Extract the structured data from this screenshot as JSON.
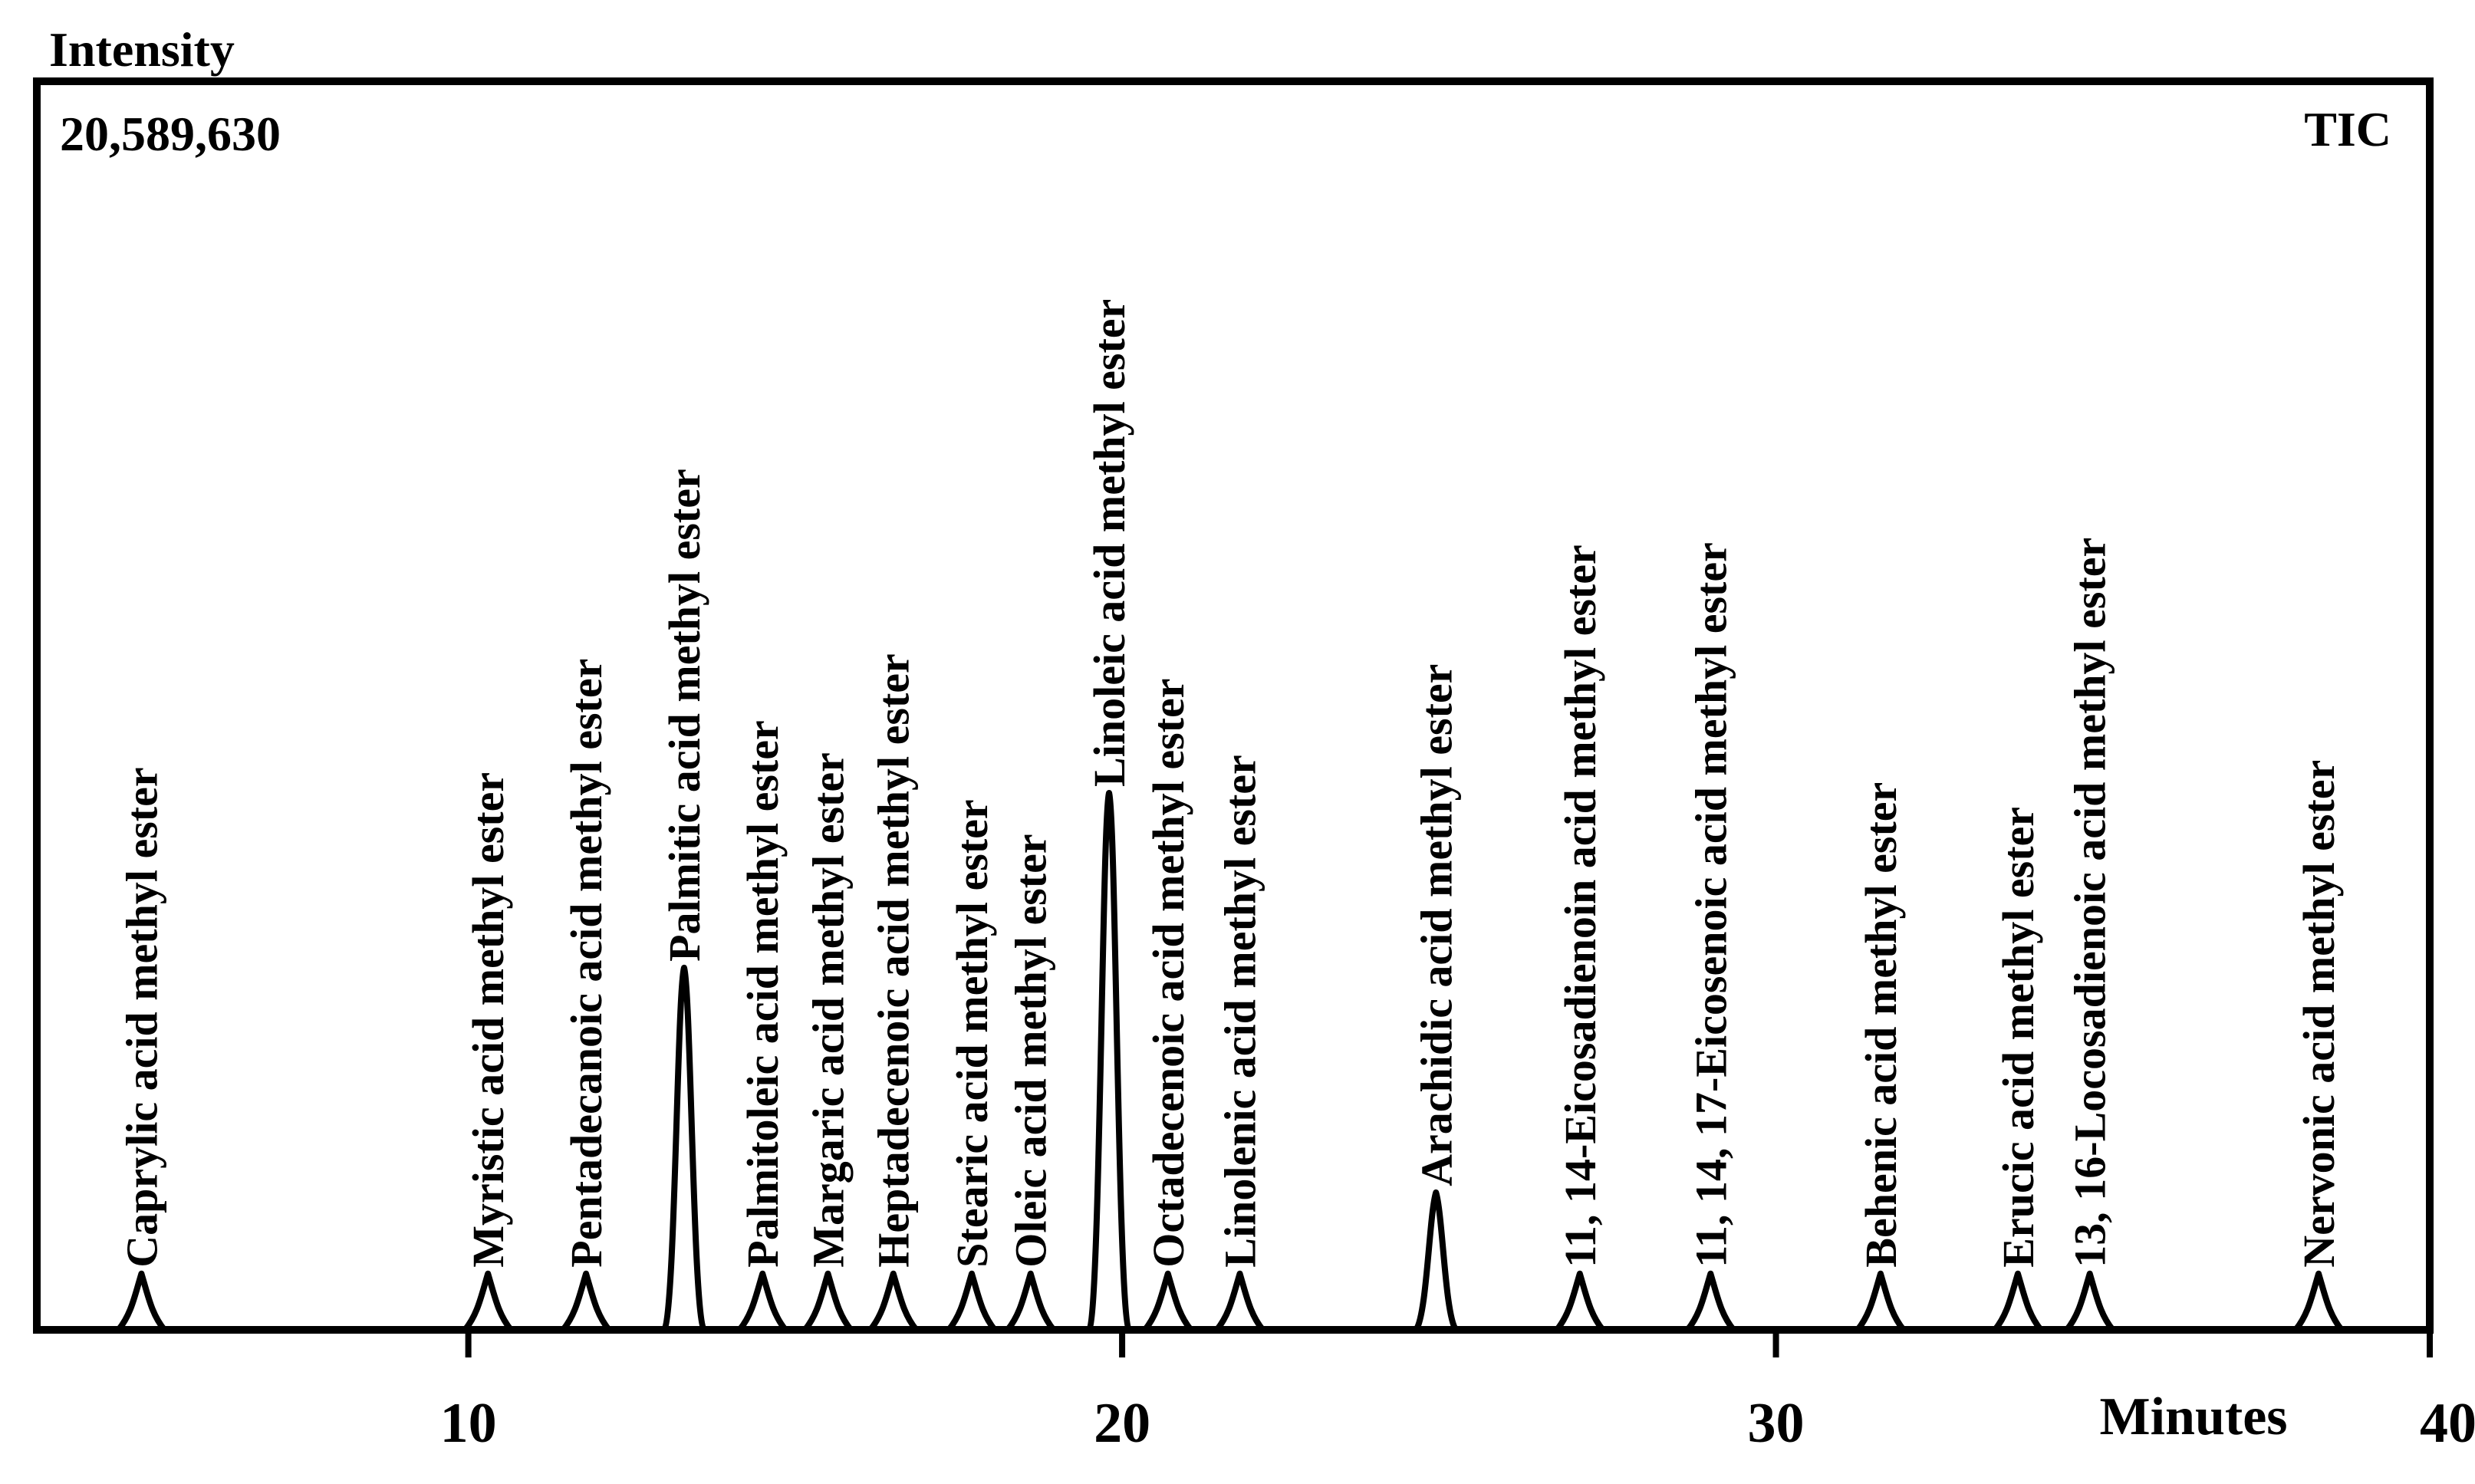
{
  "chart_data": {
    "type": "line",
    "title": "",
    "ylabel": "Intensity",
    "xlabel": "Minutes",
    "y_max_label": "20,589,630",
    "trace_label": "TIC",
    "xlim": [
      3.4,
      40
    ],
    "ylim": [
      0,
      100
    ],
    "grid": false,
    "legend": "none",
    "x_ticks": [
      {
        "value": 10,
        "label": "10"
      },
      {
        "value": 20,
        "label": "20"
      },
      {
        "value": 30,
        "label": "30"
      },
      {
        "value": 40,
        "label": "40"
      }
    ],
    "peaks": [
      {
        "name": "Caprylic acid methyl ester",
        "rt": 5.0,
        "height": 4.5
      },
      {
        "name": "Myristic acid methyl ester",
        "rt": 10.3,
        "height": 4.5
      },
      {
        "name": "Pentadecanoic acid methyl ester",
        "rt": 11.8,
        "height": 4.5
      },
      {
        "name": "Palmitic acid methyl ester",
        "rt": 13.3,
        "height": 29
      },
      {
        "name": "Palmitoleic acid methyl ester",
        "rt": 14.5,
        "height": 4.5
      },
      {
        "name": "Margaric acid methyl ester",
        "rt": 15.5,
        "height": 4.5
      },
      {
        "name": "Heptadecenoic acid methyl ester",
        "rt": 16.5,
        "height": 4.5
      },
      {
        "name": "Stearic acid methyl ester",
        "rt": 17.7,
        "height": 4.5
      },
      {
        "name": "Oleic acid methyl ester",
        "rt": 18.6,
        "height": 4.5
      },
      {
        "name": "Linoleic acid methyl ester",
        "rt": 19.8,
        "height": 43
      },
      {
        "name": "Octadecenoic acid methyl ester",
        "rt": 20.7,
        "height": 4.5
      },
      {
        "name": "Linolenic acid methyl ester",
        "rt": 21.8,
        "height": 4.5
      },
      {
        "name": "Arachidic acid methyl ester",
        "rt": 24.8,
        "height": 11
      },
      {
        "name": "11, 14-Eicosadienoin acid methyl ester",
        "rt": 27.0,
        "height": 4.5
      },
      {
        "name": "11, 14, 17-Eicosenoic acid methyl ester",
        "rt": 29.0,
        "height": 4.5
      },
      {
        "name": "Behenic acid methyl ester",
        "rt": 31.6,
        "height": 4.5
      },
      {
        "name": "Erucic acid methyl ester",
        "rt": 33.7,
        "height": 4.5
      },
      {
        "name": "13, 16-Locosadienoic acid methyl ester",
        "rt": 34.8,
        "height": 4.5
      },
      {
        "name": "Nervonic acid methyl ester",
        "rt": 38.3,
        "height": 4.5
      }
    ]
  }
}
